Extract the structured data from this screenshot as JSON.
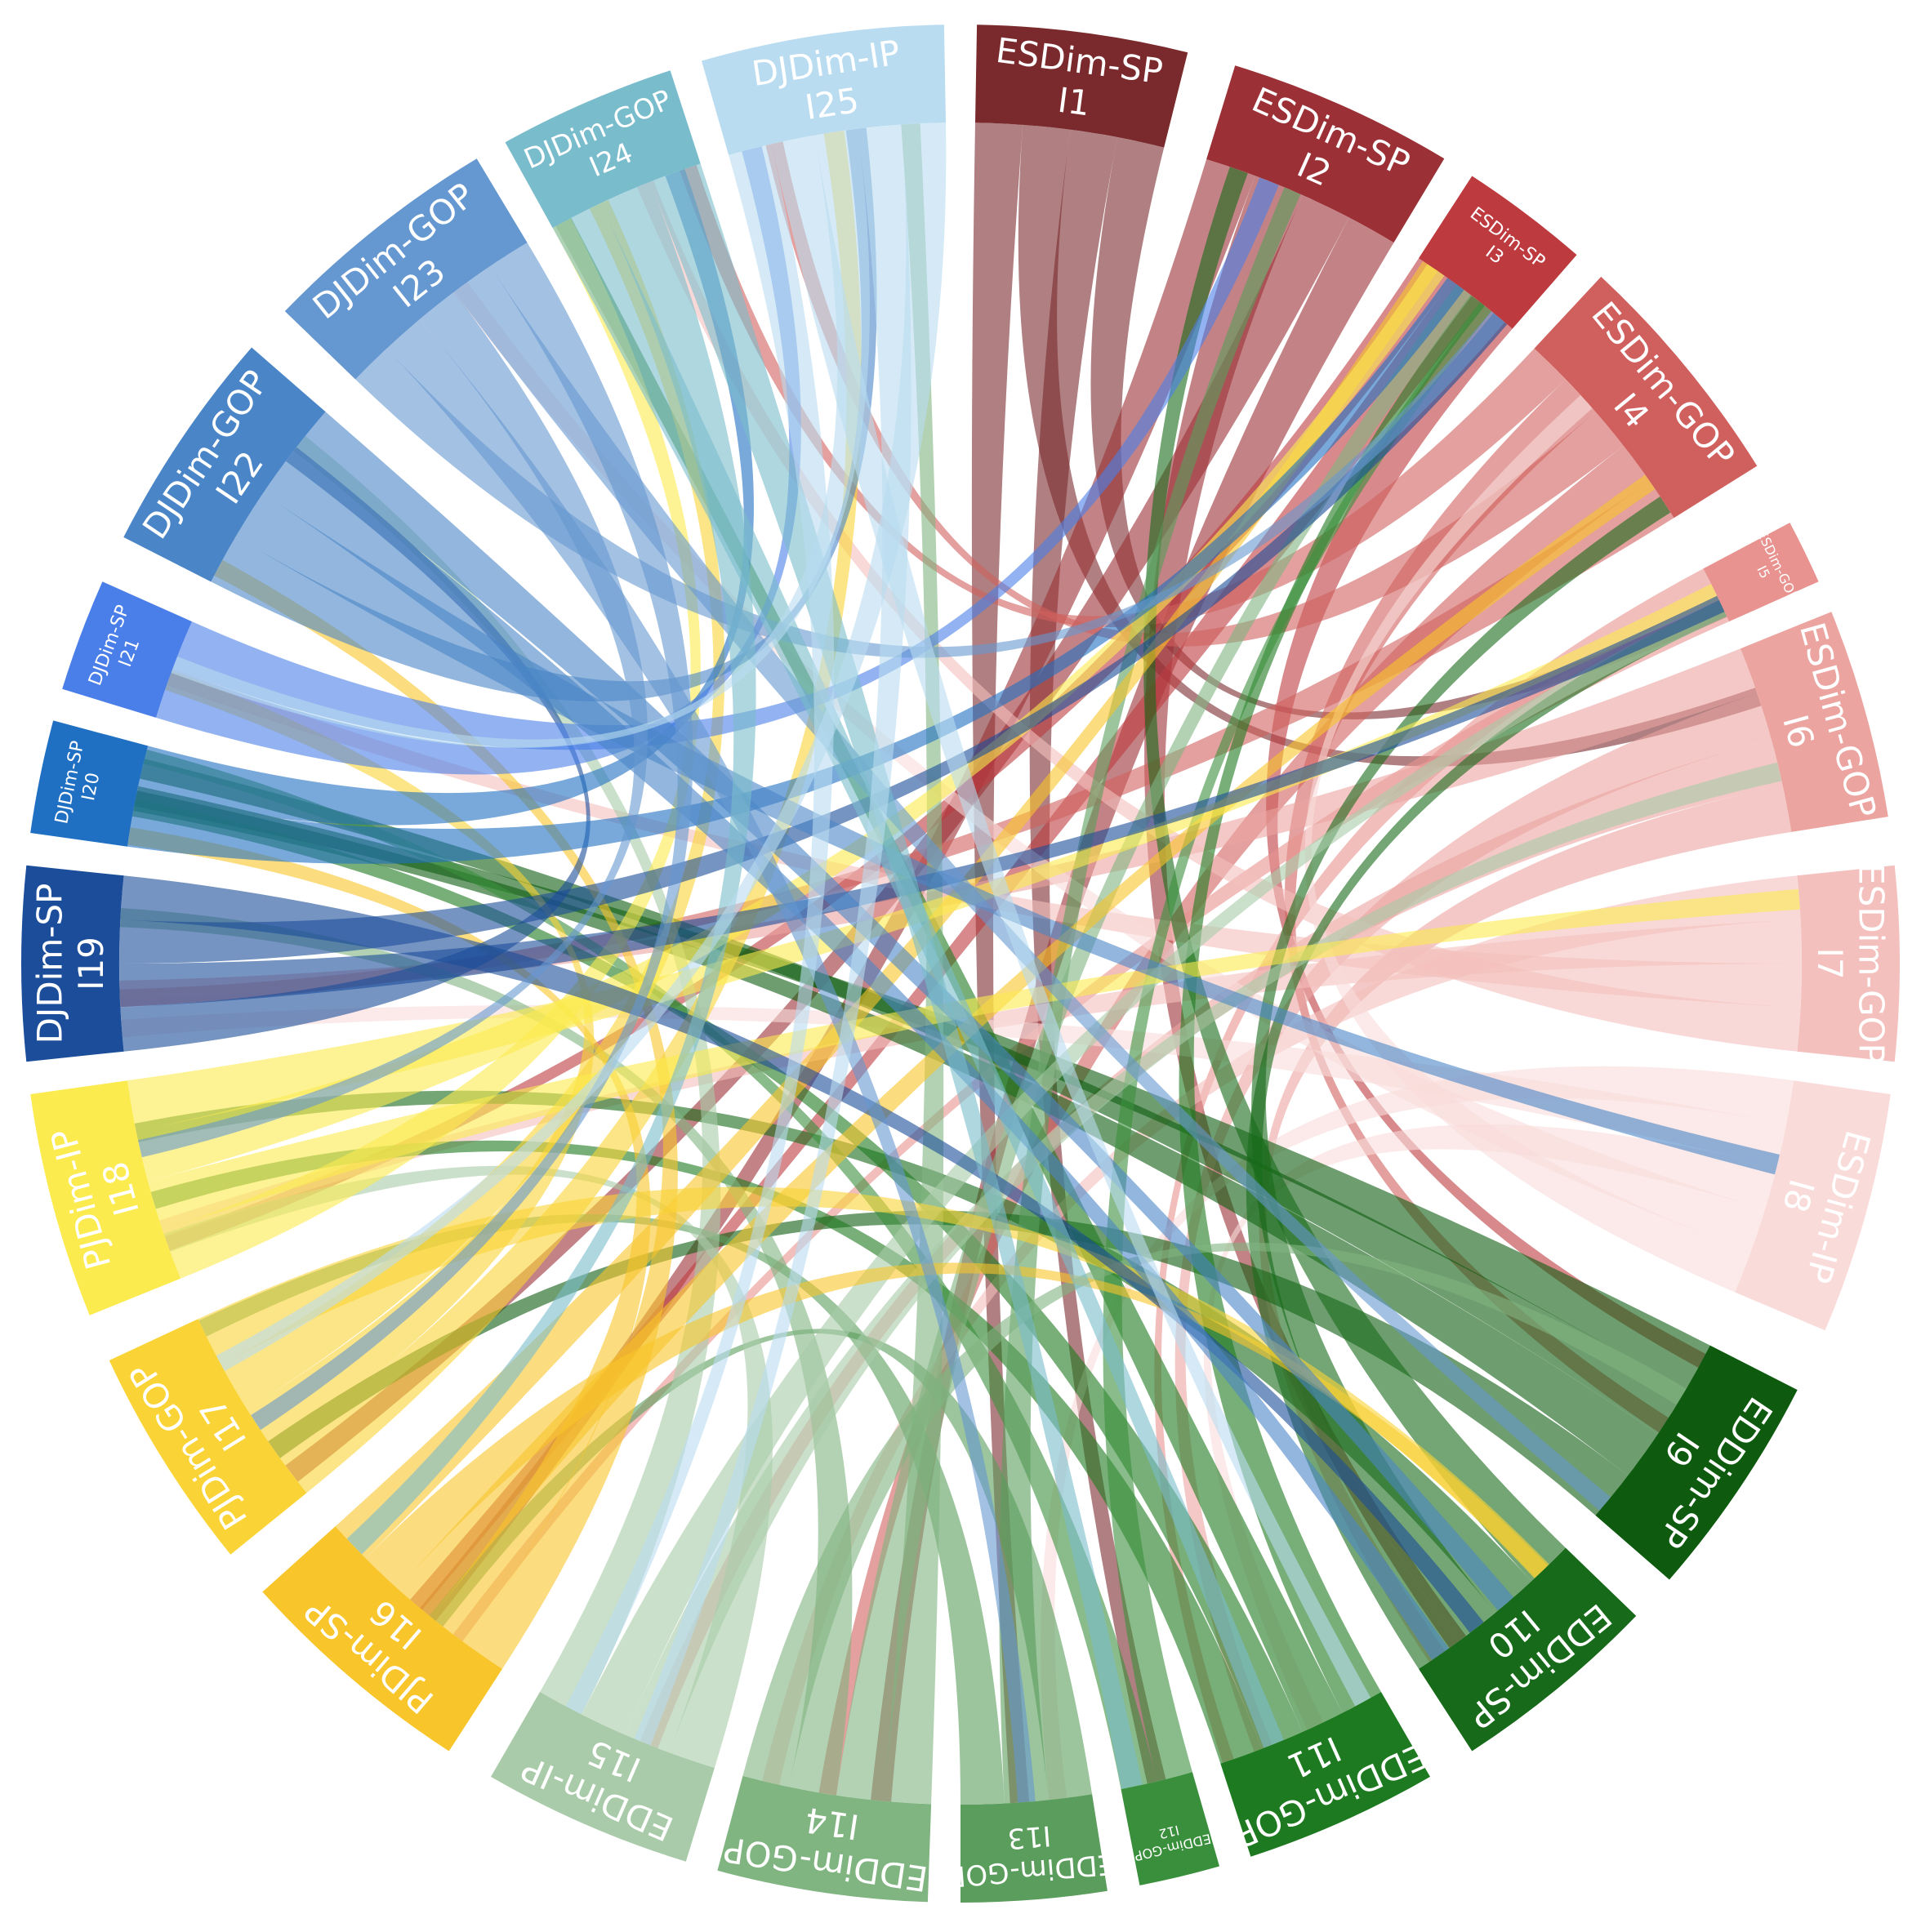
{
  "chart_data": {
    "type": "chord",
    "nodes": [
      {
        "group": "ESDim-SP",
        "id": "I1",
        "color": "#7a2a2d"
      },
      {
        "group": "ESDim-SP",
        "id": "I2",
        "color": "#9b3136"
      },
      {
        "group": "ESDim-SP",
        "id": "I3",
        "color": "#bd3a3f"
      },
      {
        "group": "ESDim-GOP",
        "id": "I4",
        "color": "#d0605e"
      },
      {
        "group": "ESDim-GOP",
        "id": "I5",
        "color": "#e8938f"
      },
      {
        "group": "ESDim-GOP",
        "id": "I6",
        "color": "#eba4a0"
      },
      {
        "group": "ESDim-GOP",
        "id": "I7",
        "color": "#f4c0bd"
      },
      {
        "group": "ESDim-IP",
        "id": "I8",
        "color": "#f9dcda"
      },
      {
        "group": "EDDim-SP",
        "id": "I9",
        "color": "#0e5b0f"
      },
      {
        "group": "EDDim-SP",
        "id": "I10",
        "color": "#176a19"
      },
      {
        "group": "EDDim-GOP",
        "id": "I11",
        "color": "#1e7a20"
      },
      {
        "group": "EDDim-GOP",
        "id": "I12",
        "color": "#3a8f3c"
      },
      {
        "group": "EDDim-GOP",
        "id": "I13",
        "color": "#5a9d5c"
      },
      {
        "group": "EDDim-GOP",
        "id": "I14",
        "color": "#80b481"
      },
      {
        "group": "EDDim-IP",
        "id": "I15",
        "color": "#a9cba9"
      },
      {
        "group": "PJDim-SP",
        "id": "I16",
        "color": "#f8c52a"
      },
      {
        "group": "PJDim-GOP",
        "id": "I17",
        "color": "#fad436"
      },
      {
        "group": "PJDim-IP",
        "id": "I18",
        "color": "#fbeb4f"
      },
      {
        "group": "DJDim-SP",
        "id": "I19",
        "color": "#1b4d9a"
      },
      {
        "group": "DJDim-SP",
        "id": "I20",
        "color": "#1f6fc2"
      },
      {
        "group": "DJDim-SP",
        "id": "I21",
        "color": "#4a7ee8"
      },
      {
        "group": "DJDim-GOP",
        "id": "I22",
        "color": "#4985c7"
      },
      {
        "group": "DJDim-GOP",
        "id": "I23",
        "color": "#6597d0"
      },
      {
        "group": "DJDim-GOP",
        "id": "I24",
        "color": "#79bccc"
      },
      {
        "group": "DJDim-IP",
        "id": "I25",
        "color": "#b9dcf0"
      }
    ]
  }
}
